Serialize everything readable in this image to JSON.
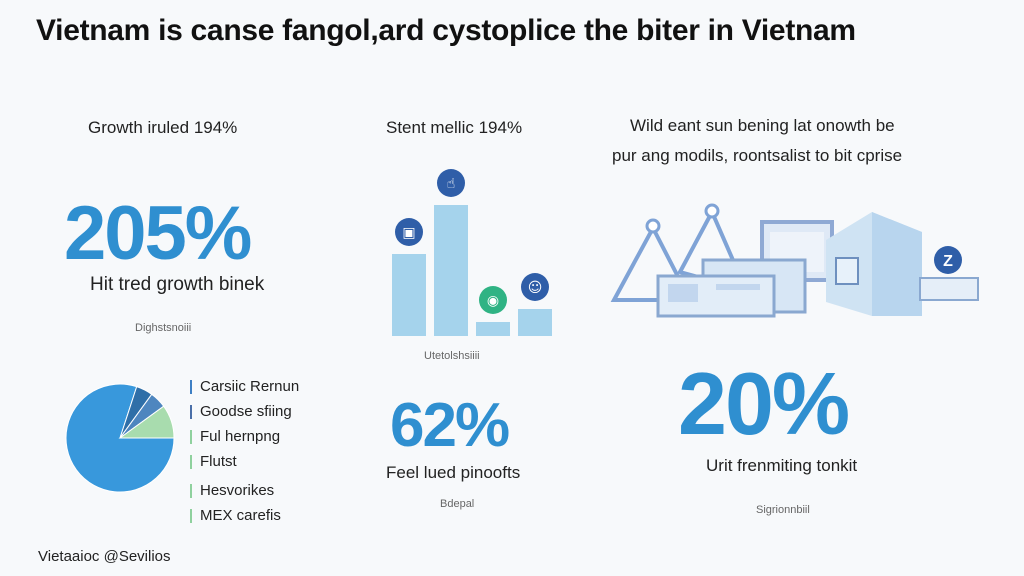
{
  "title": "Vietnam is canse fangol,ard cystoplice the biter in Vietnam",
  "left_column": {
    "heading": "Growth iruled 194%",
    "big_value": "205%",
    "caption": "Hit tred growth binek",
    "note": "Dighstsnoiii",
    "legend": [
      {
        "label": "Carsiic Rernun",
        "color": "#3d7fc4"
      },
      {
        "label": "Goodse sfiing",
        "color": "#4a6fa8"
      },
      {
        "label": "Ful hernpng",
        "color": "#8fd19e"
      },
      {
        "label": "Flutst",
        "color": "#8fd19e"
      },
      {
        "label": "Hesvorikes",
        "color": "#8fd19e"
      },
      {
        "label": "MEX carefis",
        "color": "#8fd19e"
      }
    ]
  },
  "middle_column": {
    "heading": "Stent mellic 194%",
    "note_top": "Utetolshsiiii",
    "big_value": "62%",
    "caption": "Feel lued pinoofts",
    "note_bottom": "Bdepal"
  },
  "right_column": {
    "heading_line1": "Wild eant sun bening lat onowth be",
    "heading_line2": "pur ang modils, roontsalist to bit cprise",
    "big_value": "20%",
    "caption": "Urit frenmiting tonkit",
    "note": "Sigrionnbiil",
    "badge_letter": "Z"
  },
  "footer": "Vietaaioc @Sevilios",
  "chart_data": [
    {
      "type": "pie",
      "values": [
        80,
        5,
        5,
        10
      ],
      "colors": [
        "#3898dc",
        "#2f6fa8",
        "#4e86bf",
        "#a8dcae"
      ]
    },
    {
      "type": "bar",
      "values": [
        82,
        131,
        14,
        27
      ],
      "colors": [
        "#a5d3ec",
        "#a5d3ec",
        "#a5d3ec",
        "#a5d3ec"
      ],
      "icons": [
        "briefcase-icon",
        "thumbs-up-icon",
        "money-icon",
        "person-icon"
      ]
    }
  ]
}
